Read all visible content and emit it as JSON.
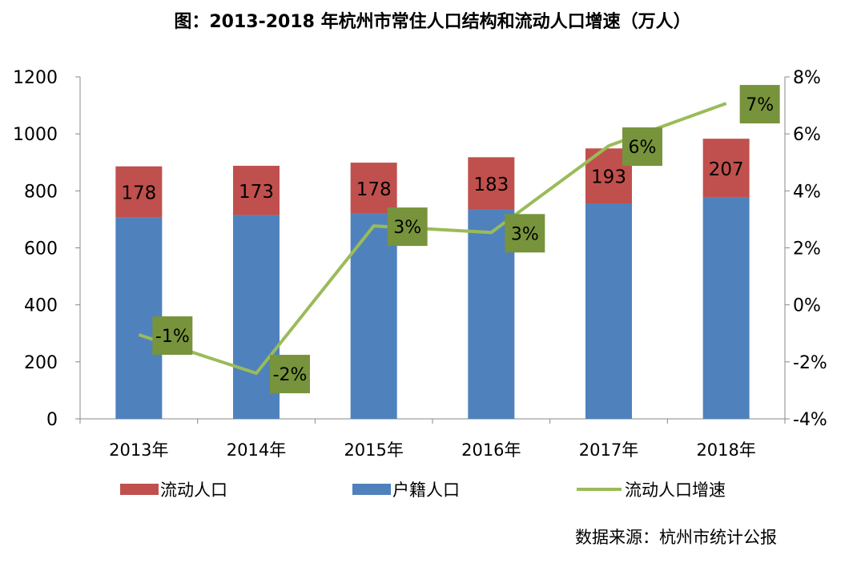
{
  "chart_data": {
    "type": "bar+line",
    "title": "图：2013-2018 年杭州市常住人口结构和流动人口增速（万人）",
    "categories": [
      "2013年",
      "2014年",
      "2015年",
      "2016年",
      "2017年",
      "2018年"
    ],
    "series": [
      {
        "name": "户籍人口",
        "type": "stacked-bar",
        "axis": "left",
        "color": "#4f81bd",
        "values": [
          708,
          715,
          721,
          735,
          756,
          776
        ]
      },
      {
        "name": "流动人口",
        "type": "stacked-bar",
        "axis": "left",
        "color": "#c0504d",
        "values": [
          178,
          173,
          178,
          183,
          193,
          207
        ],
        "labels": [
          "178",
          "173",
          "178",
          "183",
          "193",
          "207"
        ]
      },
      {
        "name": "流动人口增速",
        "type": "line",
        "axis": "right",
        "color": "#9bbb59",
        "values": [
          -1.05,
          -2.4,
          2.77,
          2.54,
          5.58,
          7.07
        ],
        "labels": [
          "-1%",
          "-2%",
          "3%",
          "3%",
          "6%",
          "7%"
        ],
        "label_box_color": "#77933c"
      }
    ],
    "left_axis": {
      "ylim": [
        0,
        1200
      ],
      "ticks": [
        "0",
        "200",
        "400",
        "600",
        "800",
        "1000",
        "1200"
      ]
    },
    "right_axis": {
      "ylim": [
        -4,
        8
      ],
      "ticks": [
        "-4%",
        "-2%",
        "0%",
        "2%",
        "4%",
        "6%",
        "8%"
      ]
    },
    "grid": false,
    "legend": {
      "placement": "bottom",
      "entries": [
        "流动人口",
        "户籍人口",
        "流动人口增速"
      ]
    },
    "source": "数据来源：杭州市统计公报"
  }
}
